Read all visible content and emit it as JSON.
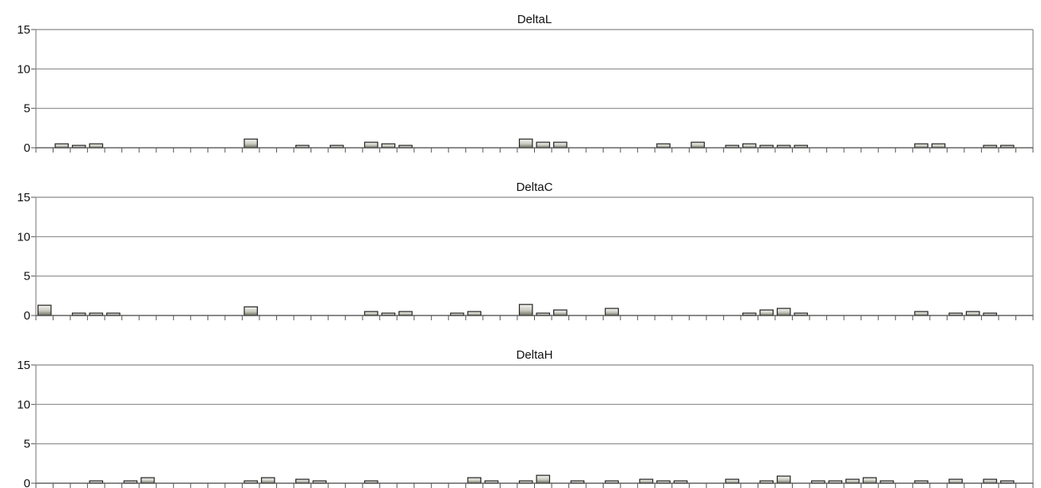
{
  "chart_data": [
    {
      "type": "bar",
      "title": "DeltaL",
      "ylim": [
        0,
        15
      ],
      "yticks": [
        "0",
        "5",
        "10",
        "15"
      ],
      "grid": true,
      "bar_color": "#c8c8c0",
      "values": [
        0.0,
        0.5,
        0.3,
        0.5,
        0.0,
        0.0,
        0.0,
        0.0,
        0.0,
        0.0,
        0.0,
        0.0,
        1.1,
        0.0,
        0.0,
        0.3,
        0.0,
        0.3,
        0.0,
        0.7,
        0.5,
        0.3,
        0.0,
        0.0,
        0.0,
        0.0,
        0.0,
        0.0,
        1.1,
        0.7,
        0.7,
        0.0,
        0.0,
        0.0,
        0.0,
        0.0,
        0.5,
        0.0,
        0.7,
        0.0,
        0.3,
        0.5,
        0.3,
        0.3,
        0.3,
        0.0,
        0.0,
        0.0,
        0.0,
        0.0,
        0.0,
        0.5,
        0.5,
        0.0,
        0.0,
        0.3,
        0.3,
        0.0
      ]
    },
    {
      "type": "bar",
      "title": "DeltaC",
      "ylim": [
        0,
        15
      ],
      "yticks": [
        "0",
        "5",
        "10",
        "15"
      ],
      "grid": true,
      "bar_color": "#c8c8c0",
      "values": [
        1.3,
        0.0,
        0.3,
        0.3,
        0.3,
        0.0,
        0.0,
        0.0,
        0.0,
        0.0,
        0.0,
        0.0,
        1.1,
        0.0,
        0.0,
        0.0,
        0.0,
        0.0,
        0.0,
        0.5,
        0.3,
        0.5,
        0.0,
        0.0,
        0.3,
        0.5,
        0.0,
        0.0,
        1.4,
        0.3,
        0.7,
        0.0,
        0.0,
        0.9,
        0.0,
        0.0,
        0.0,
        0.0,
        0.0,
        0.0,
        0.0,
        0.3,
        0.7,
        0.9,
        0.3,
        0.0,
        0.0,
        0.0,
        0.0,
        0.0,
        0.0,
        0.5,
        0.0,
        0.3,
        0.5,
        0.3,
        0.0,
        0.0
      ]
    },
    {
      "type": "bar",
      "title": "DeltaH",
      "ylim": [
        0,
        15
      ],
      "yticks": [
        "0",
        "5",
        "10",
        "15"
      ],
      "grid": true,
      "bar_color": "#c8c8c0",
      "values": [
        0.0,
        0.0,
        0.0,
        0.3,
        0.0,
        0.3,
        0.7,
        0.0,
        0.0,
        0.0,
        0.0,
        0.0,
        0.3,
        0.7,
        0.0,
        0.5,
        0.3,
        0.0,
        0.0,
        0.3,
        0.0,
        0.0,
        0.0,
        0.0,
        0.0,
        0.7,
        0.3,
        0.0,
        0.3,
        1.0,
        0.0,
        0.3,
        0.0,
        0.3,
        0.0,
        0.5,
        0.3,
        0.3,
        0.0,
        0.0,
        0.5,
        0.0,
        0.3,
        0.9,
        0.0,
        0.3,
        0.3,
        0.5,
        0.7,
        0.3,
        0.0,
        0.3,
        0.0,
        0.5,
        0.0,
        0.5,
        0.3,
        0.0
      ]
    }
  ]
}
